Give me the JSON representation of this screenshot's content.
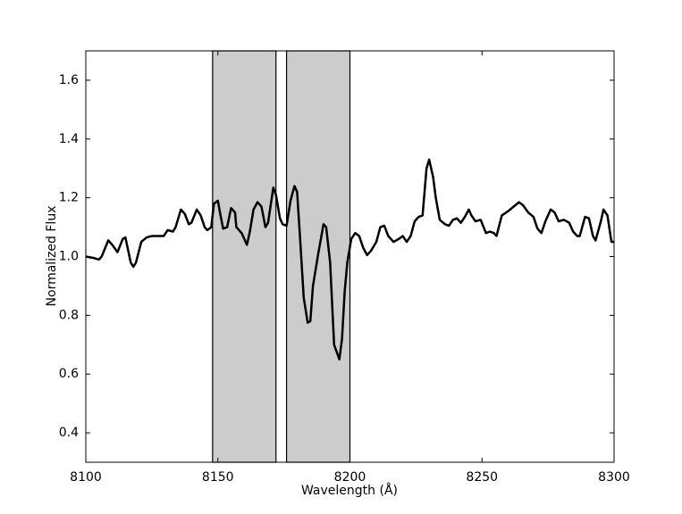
{
  "chart_data": {
    "type": "line",
    "xlabel": "Wavelength (Å)",
    "ylabel": "Normalized Flux",
    "x": [
      8100,
      8103,
      8105,
      8106,
      8108.5,
      8110,
      8112,
      8114,
      8115,
      8117,
      8118,
      8119,
      8121,
      8123,
      8125,
      8129.5,
      8131,
      8133,
      8134,
      8136,
      8137.5,
      8139,
      8140,
      8142,
      8143.5,
      8145,
      8146,
      8147.5,
      8148.5,
      8150,
      8151,
      8152,
      8153.5,
      8155,
      8156.5,
      8157,
      8159,
      8161,
      8162,
      8163.5,
      8165,
      8166.5,
      8168,
      8169,
      8171,
      8172,
      8173.5,
      8174.5,
      8176,
      8177.5,
      8179,
      8180,
      8181,
      8182.5,
      8184,
      8185,
      8186,
      8188,
      8190,
      8191,
      8192.5,
      8194,
      8196,
      8197,
      8198,
      8199,
      8200.5,
      8202,
      8203.5,
      8205,
      8206.5,
      8208,
      8210,
      8211.5,
      8213,
      8214.5,
      8216.5,
      8218.5,
      8220,
      8221.5,
      8223,
      8224.5,
      8226,
      8227.5,
      8229,
      8230,
      8231.5,
      8232.5,
      8234,
      8236,
      8237.5,
      8239,
      8240.5,
      8242,
      8243.5,
      8245,
      8246,
      8247.5,
      8249.5,
      8251.5,
      8253,
      8254.5,
      8255.5,
      8257.5,
      8260,
      8262,
      8264,
      8265.5,
      8267.5,
      8269.5,
      8271,
      8272.5,
      8274,
      8276,
      8277.5,
      8279,
      8281,
      8283,
      8284.5,
      8286,
      8287,
      8289,
      8290.5,
      8292,
      8293,
      8295,
      8296,
      8297.5,
      8299,
      8300
    ],
    "series": [
      {
        "color": "#000000",
        "values": [
          1.0,
          0.995,
          0.99,
          1.0,
          1.055,
          1.04,
          1.015,
          1.06,
          1.065,
          0.98,
          0.965,
          0.98,
          1.05,
          1.065,
          1.07,
          1.07,
          1.09,
          1.085,
          1.1,
          1.16,
          1.145,
          1.11,
          1.115,
          1.16,
          1.14,
          1.1,
          1.09,
          1.1,
          1.18,
          1.19,
          1.14,
          1.095,
          1.1,
          1.165,
          1.15,
          1.1,
          1.08,
          1.04,
          1.08,
          1.16,
          1.185,
          1.17,
          1.1,
          1.115,
          1.235,
          1.21,
          1.13,
          1.11,
          1.105,
          1.19,
          1.24,
          1.22,
          1.08,
          0.86,
          0.775,
          0.78,
          0.9,
          1.01,
          1.11,
          1.1,
          0.98,
          0.7,
          0.65,
          0.72,
          0.88,
          0.98,
          1.06,
          1.08,
          1.07,
          1.03,
          1.005,
          1.02,
          1.05,
          1.1,
          1.105,
          1.07,
          1.05,
          1.06,
          1.07,
          1.05,
          1.07,
          1.12,
          1.135,
          1.14,
          1.3,
          1.33,
          1.27,
          1.2,
          1.125,
          1.11,
          1.105,
          1.125,
          1.13,
          1.115,
          1.135,
          1.16,
          1.14,
          1.12,
          1.125,
          1.08,
          1.085,
          1.08,
          1.07,
          1.14,
          1.155,
          1.17,
          1.185,
          1.175,
          1.15,
          1.135,
          1.095,
          1.08,
          1.12,
          1.16,
          1.15,
          1.12,
          1.125,
          1.115,
          1.085,
          1.07,
          1.07,
          1.135,
          1.13,
          1.07,
          1.055,
          1.12,
          1.16,
          1.14,
          1.05,
          1.05
        ]
      }
    ],
    "spans": [
      {
        "x0": 8148,
        "x1": 8172
      },
      {
        "x0": 8176,
        "x1": 8200
      }
    ],
    "span_color": "#cccccc",
    "xlim": [
      8100,
      8300
    ],
    "xticks": [
      8100,
      8150,
      8200,
      8250,
      8300
    ],
    "ylim": [
      0.3,
      1.7
    ],
    "yticks": [
      0.4,
      0.6,
      0.8,
      {
        "value": 1,
        "label": "1.0"
      },
      1.2,
      1.4,
      1.6
    ]
  }
}
